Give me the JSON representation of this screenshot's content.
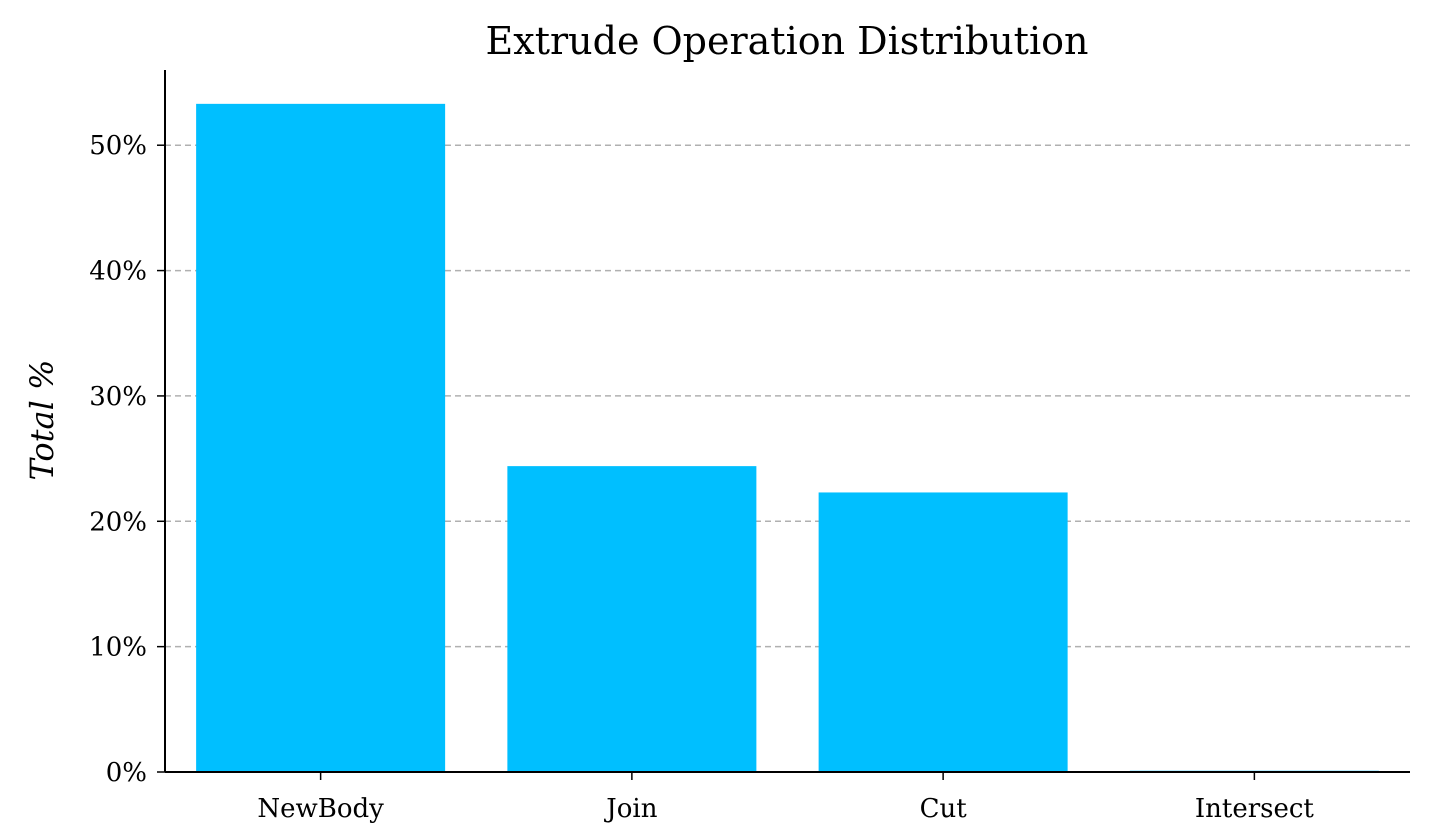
{
  "chart_data": {
    "type": "bar",
    "title": "Extrude Operation Distribution",
    "xlabel": "",
    "ylabel": "Total %",
    "categories": [
      "NewBody",
      "Join",
      "Cut",
      "Intersect"
    ],
    "values": [
      53.3,
      24.4,
      22.3,
      0.1
    ],
    "ylim": [
      0,
      56
    ],
    "yticks": [
      0,
      10,
      20,
      30,
      40,
      50
    ],
    "ytick_labels": [
      "0%",
      "10%",
      "20%",
      "30%",
      "40%",
      "50%"
    ],
    "grid": true,
    "bar_color": "#00bfff"
  }
}
